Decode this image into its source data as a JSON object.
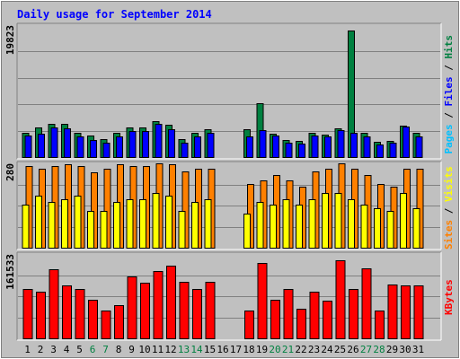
{
  "chart_data": {
    "type": "bar",
    "title": "Daily usage for September 2014",
    "x": [
      "1",
      "2",
      "3",
      "4",
      "5",
      "6",
      "7",
      "8",
      "9",
      "10",
      "11",
      "12",
      "13",
      "14",
      "15",
      "16",
      "17",
      "18",
      "19",
      "20",
      "21",
      "22",
      "23",
      "24",
      "25",
      "26",
      "27",
      "28",
      "29",
      "30",
      "31"
    ],
    "weekend_days": [
      "6",
      "7",
      "13",
      "14",
      "20",
      "21",
      "27",
      "28"
    ],
    "panels": [
      {
        "id": "hits",
        "max_label": "19823",
        "ylim": [
          0,
          19823
        ],
        "series": [
          {
            "name": "Hits",
            "color": "#008040",
            "values": [
              3650,
              4500,
              5050,
              4950,
              3700,
              3200,
              2700,
              3600,
              4450,
              4450,
              5450,
              4800,
              2650,
              3600,
              4200,
              null,
              null,
              4150,
              8050,
              3500,
              2550,
              2450,
              3650,
              3350,
              4350,
              19000,
              3600,
              2350,
              2450,
              4750,
              3650
            ]
          },
          {
            "name": "Files",
            "color": "#0000ff",
            "values": [
              3200,
              3450,
              4400,
              4350,
              3100,
              2600,
              2150,
              3100,
              3900,
              3950,
              4950,
              4150,
              2150,
              3100,
              3650,
              null,
              null,
              3050,
              4050,
              3200,
              2100,
              2000,
              3300,
              3100,
              4000,
              3700,
              3100,
              1950,
              2100,
              4550,
              3150
            ]
          },
          {
            "name": "Pages",
            "color": "#00c0ff",
            "values": [
              null,
              null,
              null,
              null,
              null,
              null,
              null,
              null,
              null,
              null,
              null,
              null,
              null,
              null,
              null,
              null,
              null,
              null,
              null,
              null,
              null,
              null,
              null,
              null,
              null,
              null,
              null,
              null,
              null,
              null,
              null
            ]
          }
        ],
        "legend": [
          "Pages",
          "Files",
          "Hits"
        ]
      },
      {
        "id": "visits",
        "max_label": "280",
        "ylim": [
          0,
          280
        ],
        "series": [
          {
            "name": "Sites",
            "color": "#ff8000",
            "values": [
              272,
              262,
              272,
              278,
              272,
              250,
              262,
              278,
              272,
              272,
              280,
              276,
              252,
              262,
              262,
              null,
              null,
              212,
              222,
              242,
              222,
              202,
              252,
              262,
              280,
              262,
              242,
              212,
              202,
              262,
              262
            ]
          },
          {
            "name": "Visits",
            "color": "#ffff00",
            "values": [
              142,
              172,
              152,
              162,
              172,
              122,
              122,
              152,
              162,
              162,
              182,
              172,
              122,
              152,
              162,
              null,
              null,
              112,
              152,
              142,
              162,
              142,
              162,
              182,
              182,
              162,
              142,
              132,
              122,
              182,
              132
            ]
          }
        ],
        "legend": [
          "Sites",
          "Visits"
        ]
      },
      {
        "id": "kbytes",
        "max_label": "161533",
        "ylim": [
          0,
          161533
        ],
        "series": [
          {
            "name": "KBytes",
            "color": "#ff0000",
            "values": [
              95000,
              90000,
              133000,
              102000,
              94000,
              74000,
              53000,
              64000,
              118000,
              106000,
              129000,
              139000,
              109000,
              95000,
              108000,
              null,
              null,
              53000,
              145000,
              74000,
              94000,
              57000,
              90000,
              73000,
              150000,
              95000,
              134000,
              53000,
              103000,
              101000,
              102000
            ]
          }
        ],
        "legend": [
          "KBytes"
        ]
      }
    ],
    "colors": {
      "background": "#c0c0c0",
      "title": "#0000ff",
      "gridline": "#808080",
      "weekday_label": "#000000",
      "weekend_label": "#008040"
    },
    "grid": true,
    "legend_placement": "right"
  }
}
